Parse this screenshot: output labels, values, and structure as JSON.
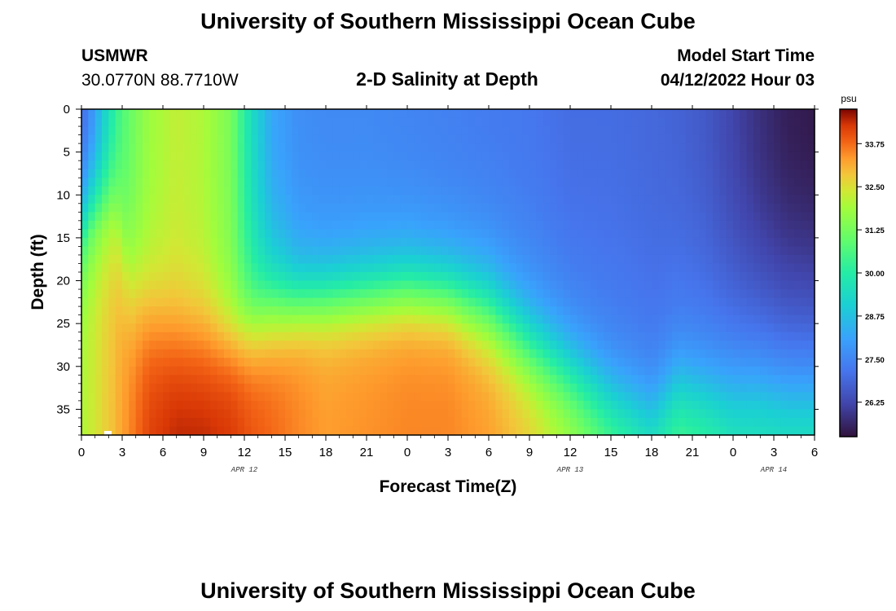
{
  "header": {
    "title": "University of Southern Mississippi Ocean Cube",
    "station": "USMWR",
    "coords": "30.0770N  88.7710W",
    "subtitle": "2-D Salinity at Depth",
    "model_start_label": "Model Start Time",
    "model_start_value": "04/12/2022 Hour 03"
  },
  "footer": {
    "title": "University of Southern Mississippi Ocean Cube"
  },
  "chart_data": {
    "type": "heatmap",
    "title": "2-D Salinity at Depth",
    "xlabel": "Forecast Time(Z)",
    "ylabel": "Depth (ft)",
    "x_hours_since_start": [
      0,
      54
    ],
    "x_ticks": [
      {
        "h": 0,
        "label": "0"
      },
      {
        "h": 3,
        "label": "3"
      },
      {
        "h": 6,
        "label": "6"
      },
      {
        "h": 9,
        "label": "9"
      },
      {
        "h": 12,
        "label": "12"
      },
      {
        "h": 15,
        "label": "15"
      },
      {
        "h": 18,
        "label": "18"
      },
      {
        "h": 21,
        "label": "21"
      },
      {
        "h": 24,
        "label": "0"
      },
      {
        "h": 27,
        "label": "3"
      },
      {
        "h": 30,
        "label": "6"
      },
      {
        "h": 33,
        "label": "9"
      },
      {
        "h": 36,
        "label": "12"
      },
      {
        "h": 39,
        "label": "15"
      },
      {
        "h": 42,
        "label": "18"
      },
      {
        "h": 45,
        "label": "21"
      },
      {
        "h": 48,
        "label": "0"
      },
      {
        "h": 51,
        "label": "3"
      },
      {
        "h": 54,
        "label": "6"
      }
    ],
    "date_labels": [
      {
        "h": 12,
        "label": "APR 12"
      },
      {
        "h": 36,
        "label": "APR 13"
      },
      {
        "h": 51,
        "label": "APR 14"
      }
    ],
    "y_range_ft": [
      0,
      38
    ],
    "y_ticks": [
      0,
      5,
      10,
      15,
      20,
      25,
      30,
      35
    ],
    "colorbar": {
      "unit": "psu",
      "range": [
        25.25,
        34.75
      ],
      "ticks": [
        "33.75",
        "32.50",
        "31.25",
        "30.00",
        "28.75",
        "27.50",
        "26.25"
      ]
    },
    "grid": false,
    "salinity_profiles": [
      {
        "t": 0,
        "top": 27.0,
        "mid": 29.0,
        "bot": 32.0,
        "zc": 17,
        "w": 3.5
      },
      {
        "t": 0.5,
        "top": 27.4,
        "mid": 29.6,
        "bot": 32.2,
        "zc": 15,
        "w": 3.5
      },
      {
        "t": 1.5,
        "top": 28.8,
        "mid": 30.5,
        "bot": 32.6,
        "zc": 14,
        "w": 3.5
      },
      {
        "t": 2.5,
        "top": 30.2,
        "mid": 31.2,
        "bot": 33.0,
        "zc": 14,
        "w": 4
      },
      {
        "t": 3.5,
        "top": 31.0,
        "mid": 31.6,
        "bot": 33.5,
        "zc": 22,
        "w": 4
      },
      {
        "t": 5,
        "top": 31.8,
        "mid": 32.0,
        "bot": 34.2,
        "zc": 24,
        "w": 4
      },
      {
        "t": 7,
        "top": 32.2,
        "mid": 32.3,
        "bot": 34.5,
        "zc": 26,
        "w": 4
      },
      {
        "t": 9,
        "top": 32.0,
        "mid": 32.0,
        "bot": 34.5,
        "zc": 26,
        "w": 4
      },
      {
        "t": 11,
        "top": 31.3,
        "mid": 31.6,
        "bot": 34.3,
        "zc": 27,
        "w": 3
      },
      {
        "t": 12.5,
        "top": 29.5,
        "mid": 30.5,
        "bot": 34.0,
        "zc": 26,
        "w": 3
      },
      {
        "t": 14,
        "top": 28.2,
        "mid": 29.4,
        "bot": 33.8,
        "zc": 24,
        "w": 3
      },
      {
        "t": 16,
        "top": 27.7,
        "mid": 28.6,
        "bot": 33.5,
        "zc": 23,
        "w": 2.5
      },
      {
        "t": 18,
        "top": 27.6,
        "mid": 28.4,
        "bot": 33.3,
        "zc": 22.5,
        "w": 2.5
      },
      {
        "t": 21,
        "top": 27.6,
        "mid": 28.5,
        "bot": 33.4,
        "zc": 22,
        "w": 2.5
      },
      {
        "t": 24,
        "top": 27.5,
        "mid": 28.6,
        "bot": 33.5,
        "zc": 21.5,
        "w": 2.5
      },
      {
        "t": 27,
        "top": 27.4,
        "mid": 28.5,
        "bot": 33.5,
        "zc": 22,
        "w": 2.5
      },
      {
        "t": 30,
        "top": 27.3,
        "mid": 28.3,
        "bot": 33.3,
        "zc": 24,
        "w": 3
      },
      {
        "t": 33,
        "top": 27.2,
        "mid": 28.1,
        "bot": 32.8,
        "zc": 28,
        "w": 3
      },
      {
        "t": 36,
        "top": 27.0,
        "mid": 27.8,
        "bot": 32.0,
        "zc": 31,
        "w": 3
      },
      {
        "t": 39,
        "top": 27.0,
        "mid": 27.6,
        "bot": 31.0,
        "zc": 34,
        "w": 3
      },
      {
        "t": 42,
        "top": 26.9,
        "mid": 27.5,
        "bot": 30.4,
        "zc": 36,
        "w": 3
      },
      {
        "t": 44,
        "top": 26.8,
        "mid": 27.7,
        "bot": 30.8,
        "zc": 33,
        "w": 3
      },
      {
        "t": 46,
        "top": 26.6,
        "mid": 27.8,
        "bot": 30.6,
        "zc": 34,
        "w": 3
      },
      {
        "t": 48,
        "top": 26.2,
        "mid": 27.8,
        "bot": 30.3,
        "zc": 35,
        "w": 3.5
      },
      {
        "t": 50,
        "top": 25.8,
        "mid": 27.9,
        "bot": 30.2,
        "zc": 35,
        "w": 3.5
      },
      {
        "t": 52,
        "top": 25.5,
        "mid": 28.0,
        "bot": 30.2,
        "zc": 36,
        "w": 3.5
      },
      {
        "t": 54,
        "top": 25.4,
        "mid": 28.0,
        "bot": 30.2,
        "zc": 36,
        "w": 3.5
      }
    ]
  }
}
